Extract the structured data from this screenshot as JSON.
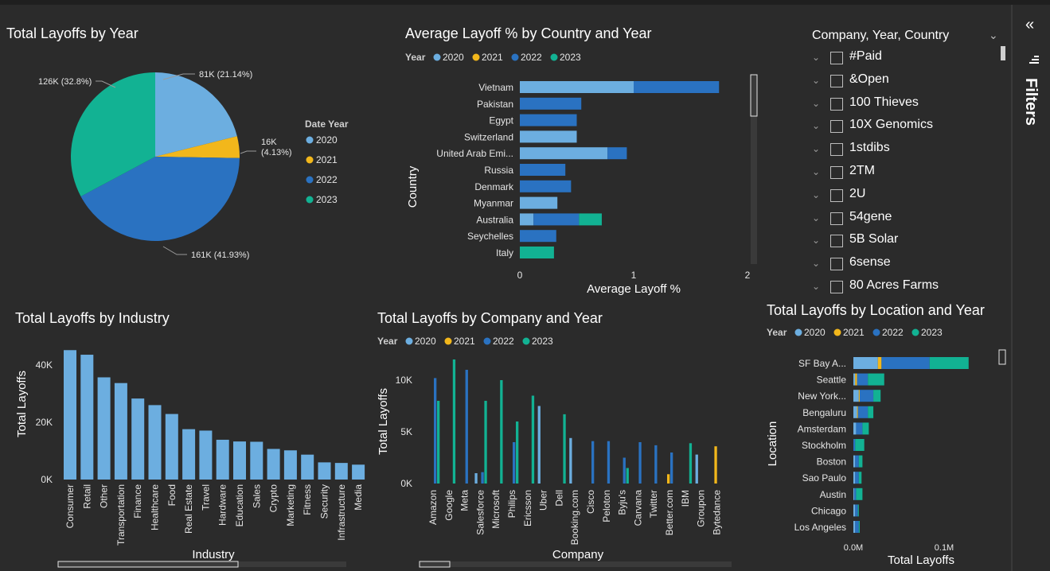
{
  "colors": {
    "y2020": "#6caee0",
    "y2021": "#f2b71b",
    "y2022": "#2a72c1",
    "y2023": "#12b293",
    "bar": "#6caee0"
  },
  "pie": {
    "title": "Total Layoffs by Year",
    "legend_title": "Date Year",
    "legend": [
      "2020",
      "2021",
      "2022",
      "2023"
    ],
    "labels": [
      "81K (21.14%)",
      "16K\n(4.13%)",
      "161K (41.93%)",
      "126K (32.8%)"
    ],
    "chart_data": {
      "type": "pie",
      "categories": [
        "2020",
        "2021",
        "2022",
        "2023"
      ],
      "values": [
        81,
        16,
        161,
        126
      ],
      "unit": "K"
    }
  },
  "country": {
    "title": "Average Layoff % by Country and Year",
    "legend_title": "Year",
    "legend": [
      "2020",
      "2021",
      "2022",
      "2023"
    ],
    "ylabel": "Country",
    "xlabel": "Average Layoff %",
    "ticks": [
      "0",
      "1",
      "2"
    ],
    "chart_data": {
      "type": "bar",
      "orientation": "horizontal",
      "stacked": true,
      "xlim": [
        0,
        2
      ],
      "categories": [
        "Vietnam",
        "Pakistan",
        "Egypt",
        "Switzerland",
        "United Arab Emi...",
        "Russia",
        "Denmark",
        "Myanmar",
        "Australia",
        "Seychelles",
        "Italy"
      ],
      "series": [
        {
          "name": "2020",
          "values": [
            1.0,
            0,
            0,
            0.5,
            0.77,
            0,
            0,
            0.33,
            0.12,
            0,
            0
          ]
        },
        {
          "name": "2021",
          "values": [
            0,
            0,
            0,
            0,
            0,
            0,
            0,
            0,
            0,
            0,
            0
          ]
        },
        {
          "name": "2022",
          "values": [
            0.75,
            0.54,
            0.5,
            0,
            0.17,
            0.4,
            0.45,
            0,
            0.4,
            0.32,
            0
          ]
        },
        {
          "name": "2023",
          "values": [
            0,
            0,
            0,
            0,
            0,
            0,
            0,
            0,
            0.2,
            0,
            0.3
          ]
        }
      ]
    }
  },
  "industry": {
    "title": "Total Layoffs by Industry",
    "ylabel": "Total Layoffs",
    "xlabel": "Industry",
    "ticks": [
      "0K",
      "20K",
      "40K"
    ],
    "chart_data": {
      "type": "bar",
      "ylim": [
        0,
        50
      ],
      "categories": [
        "Consumer",
        "Retail",
        "Other",
        "Transportation",
        "Finance",
        "Healthcare",
        "Food",
        "Real Estate",
        "Travel",
        "Hardware",
        "Education",
        "Sales",
        "Crypto",
        "Marketing",
        "Fitness",
        "Security",
        "Infrastructure",
        "Media"
      ],
      "values": [
        45.2,
        43.6,
        35.7,
        33.7,
        28.3,
        26.0,
        22.9,
        17.6,
        17.1,
        13.9,
        13.3,
        13.2,
        10.7,
        10.2,
        8.7,
        6.0,
        5.8,
        5.2
      ]
    }
  },
  "company": {
    "title": "Total Layoffs by Company and Year",
    "legend_title": "Year",
    "legend": [
      "2020",
      "2021",
      "2022",
      "2023"
    ],
    "ylabel": "Total Layoffs",
    "xlabel": "Company",
    "ticks": [
      "0K",
      "5K",
      "10K"
    ],
    "chart_data": {
      "type": "bar",
      "grouped": true,
      "ylim": [
        0,
        12
      ],
      "categories": [
        "Amazon",
        "Google",
        "Meta",
        "Salesforce",
        "Microsoft",
        "Philips",
        "Ericsson",
        "Uber",
        "Dell",
        "Booking.com",
        "Cisco",
        "Peloton",
        "Byju's",
        "Carvana",
        "Twitter",
        "Better.com",
        "IBM",
        "Groupon",
        "Bytedance"
      ],
      "series": [
        {
          "name": "2020",
          "values": [
            0,
            0,
            0,
            1.0,
            0,
            0,
            0,
            7.5,
            0,
            4.4,
            0,
            0,
            0,
            0,
            0,
            0,
            0,
            2.8,
            0
          ]
        },
        {
          "name": "2021",
          "values": [
            0,
            0,
            0,
            0,
            0,
            0,
            0,
            0,
            0,
            0,
            0,
            0,
            0,
            0,
            0,
            0.9,
            0,
            0,
            3.6
          ]
        },
        {
          "name": "2022",
          "values": [
            10.2,
            0,
            11.0,
            1.1,
            0,
            4.0,
            0,
            0,
            0,
            0,
            4.1,
            4.1,
            2.5,
            4.0,
            3.7,
            3.0,
            0,
            0,
            0
          ]
        },
        {
          "name": "2023",
          "values": [
            8.0,
            12.0,
            0,
            8.0,
            10.0,
            6.0,
            8.5,
            0,
            6.7,
            0,
            0,
            0,
            1.5,
            0,
            0,
            0,
            3.9,
            0,
            0
          ]
        }
      ]
    }
  },
  "location": {
    "title": "Total Layoffs by Location and Year",
    "legend_title": "Year",
    "legend": [
      "2020",
      "2021",
      "2022",
      "2023"
    ],
    "ylabel": "Location",
    "xlabel": "Total Layoffs",
    "ticks": [
      "0.0M",
      "0.1M"
    ],
    "chart_data": {
      "type": "bar",
      "orientation": "horizontal",
      "stacked": true,
      "xlim": [
        0,
        0.13
      ],
      "categories": [
        "SF Bay A...",
        "Seattle",
        "New York...",
        "Bengaluru",
        "Amsterdam",
        "Stockholm",
        "Boston",
        "Sao Paulo",
        "Austin",
        "Chicago",
        "Los Angeles"
      ],
      "series": [
        {
          "name": "2020",
          "values": [
            0.027,
            0.002,
            0.006,
            0.004,
            0.003,
            0,
            0.002,
            0.002,
            0.001,
            0.002,
            0.002
          ]
        },
        {
          "name": "2021",
          "values": [
            0.004,
            0.002,
            0.001,
            0.001,
            0,
            0,
            0,
            0,
            0,
            0,
            0
          ]
        },
        {
          "name": "2022",
          "values": [
            0.053,
            0.012,
            0.015,
            0.011,
            0.007,
            0.002,
            0.004,
            0.004,
            0.002,
            0.003,
            0.004
          ]
        },
        {
          "name": "2023",
          "values": [
            0.043,
            0.018,
            0.008,
            0.006,
            0.007,
            0.01,
            0.004,
            0.003,
            0.007,
            0.001,
            0.001
          ]
        }
      ]
    }
  },
  "slicer": {
    "title": "Company, Year, Country",
    "items": [
      "#Paid",
      "&Open",
      "100 Thieves",
      "10X Genomics",
      "1stdibs",
      "2TM",
      "2U",
      "54gene",
      "5B Solar",
      "6sense",
      "80 Acres Farms"
    ]
  },
  "filters": {
    "label": "Filters",
    "collapse_icon": "«",
    "funnel_icon": "funnel-icon"
  }
}
